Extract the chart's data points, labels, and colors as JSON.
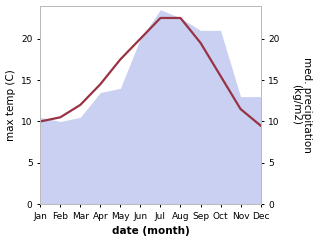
{
  "months": [
    "Jan",
    "Feb",
    "Mar",
    "Apr",
    "May",
    "Jun",
    "Jul",
    "Aug",
    "Sep",
    "Oct",
    "Nov",
    "Dec"
  ],
  "month_indices": [
    1,
    2,
    3,
    4,
    5,
    6,
    7,
    8,
    9,
    10,
    11,
    12
  ],
  "max_temp": [
    10.0,
    10.5,
    12.0,
    14.5,
    17.5,
    20.0,
    22.5,
    22.5,
    19.5,
    15.5,
    11.5,
    9.5
  ],
  "precipitation": [
    10.5,
    10.0,
    10.5,
    13.5,
    14.0,
    20.0,
    23.5,
    22.5,
    21.0,
    21.0,
    13.0,
    13.0
  ],
  "temp_color": "#993344",
  "precip_color": "#c0c8f0",
  "precip_fill_alpha": 0.85,
  "xlabel": "date (month)",
  "ylabel_left": "max temp (C)",
  "ylabel_right": "med. precipitation\n(kg/m2)",
  "ylim_left": [
    0,
    24
  ],
  "ylim_right": [
    0,
    24
  ],
  "yticks_left": [
    0,
    5,
    10,
    15,
    20
  ],
  "yticks_right": [
    0,
    5,
    10,
    15,
    20
  ],
  "bg_color": "#ffffff",
  "label_fontsize": 7.5,
  "tick_fontsize": 6.5
}
